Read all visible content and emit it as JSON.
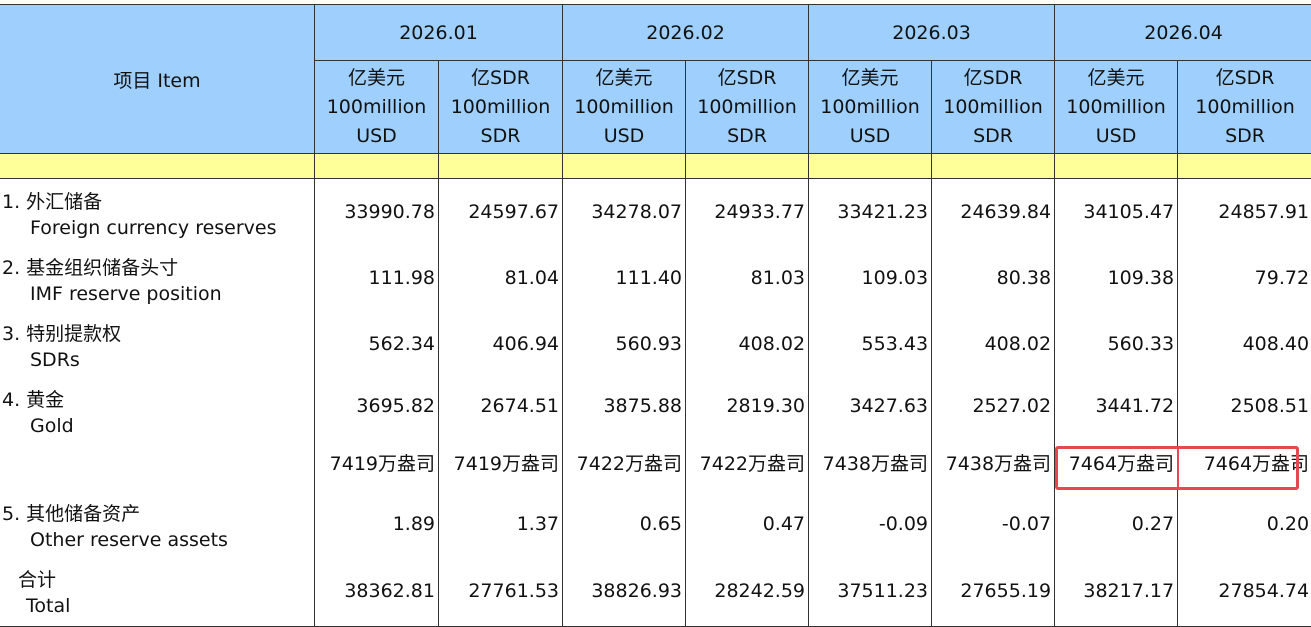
{
  "header": {
    "item_label": "项目 Item",
    "periods": [
      "2026.01",
      "2026.02",
      "2026.03",
      "2026.04"
    ],
    "usd_unit": [
      "亿美元",
      "100million",
      "USD"
    ],
    "sdr_unit": [
      "亿SDR",
      "100million",
      "SDR"
    ]
  },
  "rows": [
    {
      "zh": "1. 外汇储备",
      "en": "Foreign currency reserves",
      "values": [
        "33990.78",
        "24597.67",
        "34278.07",
        "24933.77",
        "33421.23",
        "24639.84",
        "34105.47",
        "24857.91"
      ]
    },
    {
      "zh": "2. 基金组织储备头寸",
      "en": "IMF reserve position",
      "values": [
        "111.98",
        "81.04",
        "111.40",
        "81.03",
        "109.03",
        "80.38",
        "109.38",
        "79.72"
      ]
    },
    {
      "zh": "3. 特别提款权",
      "en": "SDRs",
      "values": [
        "562.34",
        "406.94",
        "560.93",
        "408.02",
        "553.43",
        "408.02",
        "560.33",
        "408.40"
      ]
    },
    {
      "zh": "4. 黄金",
      "en": "Gold",
      "values": [
        "3695.82",
        "2674.51",
        "3875.88",
        "2819.30",
        "3427.63",
        "2527.02",
        "3441.72",
        "2508.51"
      ]
    },
    {
      "zh": "",
      "en": "",
      "values": [
        "7419万盎司",
        "7419万盎司",
        "7422万盎司",
        "7422万盎司",
        "7438万盎司",
        "7438万盎司",
        "7464万盎司",
        "7464万盎司"
      ]
    },
    {
      "zh": "5. 其他储备资产",
      "en": "Other reserve assets",
      "values": [
        "1.89",
        "1.37",
        "0.65",
        "0.47",
        "-0.09",
        "-0.07",
        "0.27",
        "0.20"
      ]
    },
    {
      "zh": "合计",
      "en": "Total",
      "values": [
        "38362.81",
        "27761.53",
        "38826.93",
        "28242.59",
        "37511.23",
        "27655.19",
        "38217.17",
        "27854.74"
      ]
    }
  ],
  "highlight_color": "#e5484d",
  "header_color": "#9ecffd",
  "spacer_color": "#ffff99"
}
